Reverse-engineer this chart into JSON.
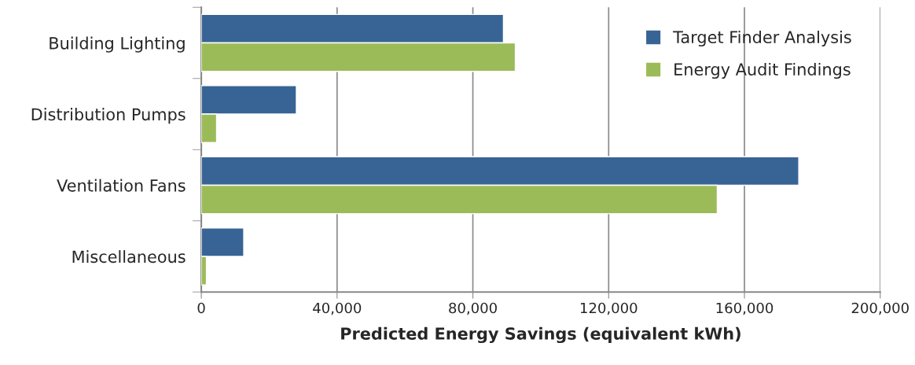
{
  "chart_data": {
    "type": "bar",
    "orientation": "horizontal",
    "xlabel": "Predicted Energy Savings (equivalent kWh)",
    "categories": [
      "Building Lighting",
      "Distribution Pumps",
      "Ventilation Fans",
      "Miscellaneous"
    ],
    "series": [
      {
        "name": "Target Finder Analysis",
        "color": "#386495",
        "values": [
          89000,
          28000,
          176000,
          12500
        ]
      },
      {
        "name": "Energy Audit Findings",
        "color": "#9bbb59",
        "values": [
          92500,
          4500,
          152000,
          1500
        ]
      }
    ],
    "xlim": [
      0,
      200000
    ],
    "xticks": [
      0,
      {
        "value": 40000,
        "label": "40,000"
      },
      {
        "value": 80000,
        "label": "80,000"
      },
      {
        "value": 120000,
        "label": "120,000"
      },
      {
        "value": 160000,
        "label": "160,000"
      },
      {
        "value": 200000,
        "label": "200,000"
      }
    ],
    "grid": "x",
    "legend": "top right"
  }
}
